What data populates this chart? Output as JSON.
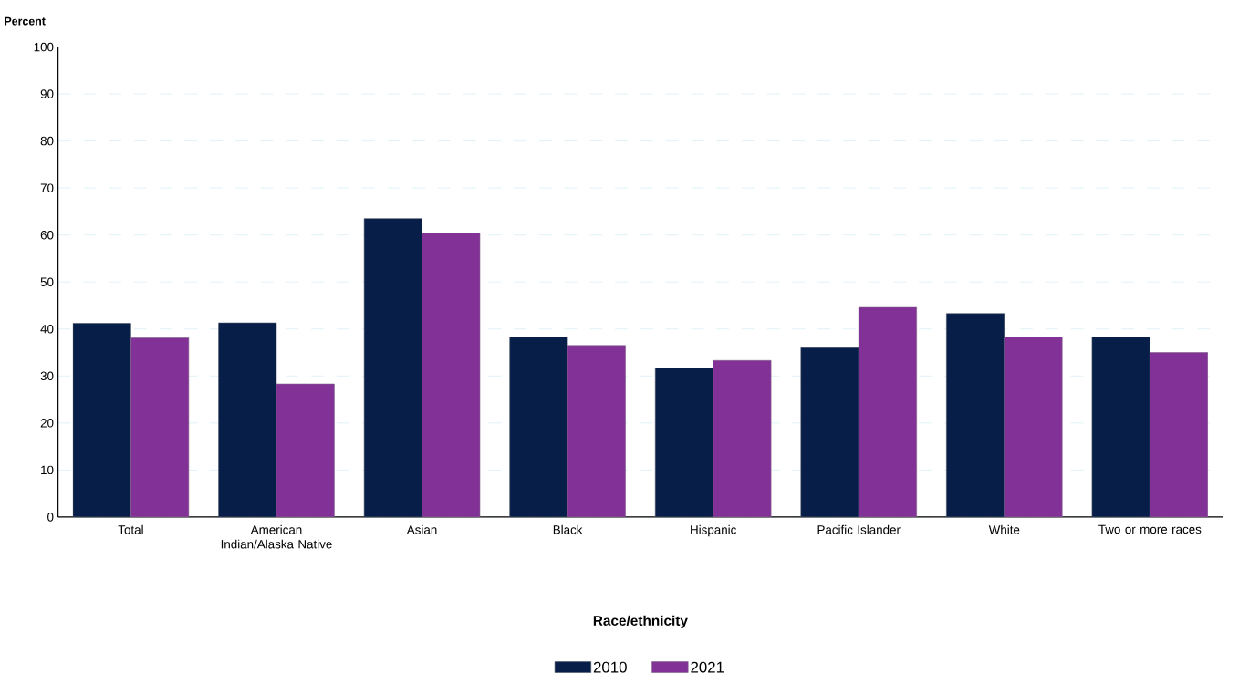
{
  "chart_data": {
    "type": "bar",
    "ylabel": "Percent",
    "xlabel": "Race/ethnicity",
    "categories": [
      "Total",
      "American Indian/Alaska Native",
      "Asian",
      "Black",
      "Hispanic",
      "Pacific Islander",
      "White",
      "Two or more races"
    ],
    "series": [
      {
        "name": "2010",
        "color": "#071e48",
        "values": [
          41.2,
          41.3,
          63.5,
          38.3,
          31.7,
          36.0,
          43.3,
          38.3
        ]
      },
      {
        "name": "2021",
        "color": "#823296",
        "values": [
          38.1,
          28.3,
          60.4,
          36.5,
          33.3,
          44.6,
          38.3,
          35.0
        ]
      }
    ],
    "ylim": [
      0,
      100
    ],
    "yticks": [
      0,
      10,
      20,
      30,
      40,
      50,
      60,
      70,
      80,
      90,
      100
    ],
    "grid": "y",
    "legend": "bottom"
  }
}
